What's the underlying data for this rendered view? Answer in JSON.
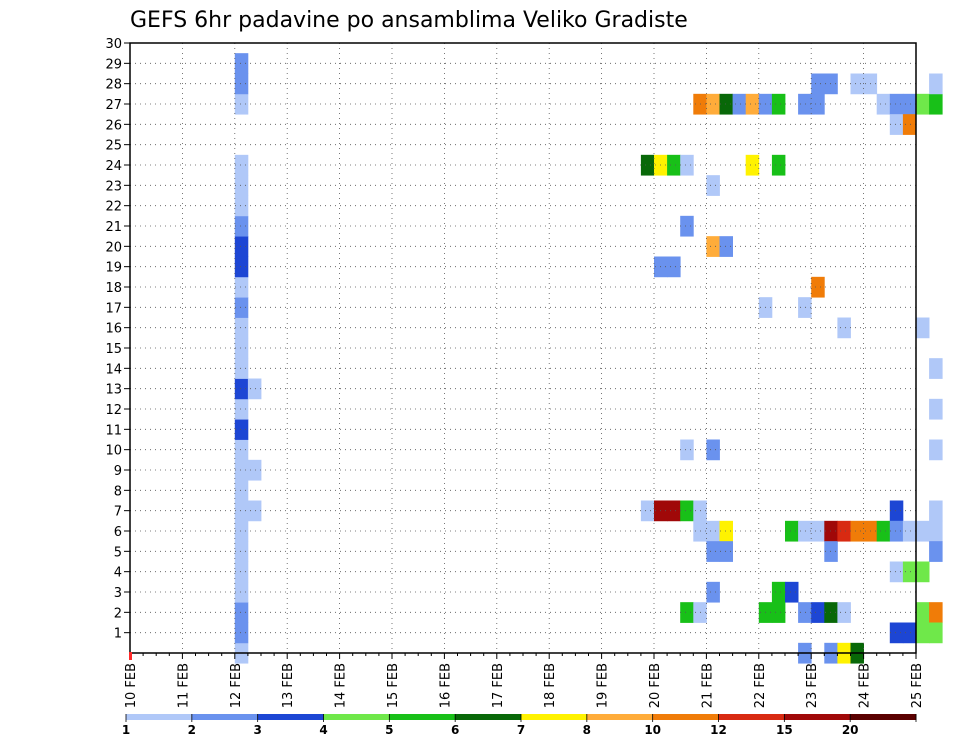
{
  "chart_data": {
    "type": "heatmap",
    "title": "GEFS 6hr padavine po ansamblima Veliko Gradiste",
    "xlabel": "",
    "ylabel": "",
    "x_tick_labels": [
      "10 FEB",
      "11 FEB",
      "12 FEB",
      "13 FEB",
      "14 FEB",
      "15 FEB",
      "16 FEB",
      "17 FEB",
      "18 FEB",
      "19 FEB",
      "20 FEB",
      "21 FEB",
      "22 FEB",
      "23 FEB",
      "24 FEB",
      "25 FEB"
    ],
    "y_tick_labels": [
      "1",
      "2",
      "3",
      "4",
      "5",
      "6",
      "7",
      "8",
      "9",
      "10",
      "11",
      "12",
      "13",
      "14",
      "15",
      "16",
      "17",
      "18",
      "19",
      "20",
      "21",
      "22",
      "23",
      "24",
      "25",
      "26",
      "27",
      "28",
      "29",
      "30"
    ],
    "x_range_steps": [
      0,
      60
    ],
    "y_range": [
      0,
      30
    ],
    "grid": true,
    "legend": {
      "placement": "bottom",
      "colors": [
        "#b0c8f8",
        "#6a92ee",
        "#1d46d4",
        "#6fe84a",
        "#18c018",
        "#086808",
        "#fff200",
        "#ffac3a",
        "#f07c08",
        "#d82a12",
        "#a00808",
        "#5a0000"
      ],
      "labels": [
        "1",
        "2",
        "3",
        "4",
        "5",
        "6",
        "7",
        "8",
        "10",
        "12",
        "15",
        "20"
      ]
    },
    "cells_note": "step index (6h steps from 10 FEB 00z), member, color class index",
    "cells": [
      [
        8,
        0,
        0
      ],
      [
        8,
        1,
        1
      ],
      [
        8,
        2,
        1
      ],
      [
        8,
        3,
        0
      ],
      [
        8,
        4,
        0
      ],
      [
        8,
        5,
        0
      ],
      [
        8,
        6,
        0
      ],
      [
        8,
        7,
        0
      ],
      [
        8,
        8,
        0
      ],
      [
        8,
        9,
        0
      ],
      [
        8,
        10,
        0
      ],
      [
        8,
        11,
        2
      ],
      [
        8,
        12,
        0
      ],
      [
        8,
        13,
        2
      ],
      [
        8,
        14,
        0
      ],
      [
        8,
        15,
        0
      ],
      [
        8,
        16,
        0
      ],
      [
        8,
        17,
        1
      ],
      [
        8,
        18,
        0
      ],
      [
        8,
        19,
        2
      ],
      [
        8,
        20,
        2
      ],
      [
        8,
        21,
        1
      ],
      [
        8,
        22,
        0
      ],
      [
        8,
        23,
        0
      ],
      [
        8,
        24,
        0
      ],
      [
        8,
        27,
        0
      ],
      [
        8,
        28,
        1
      ],
      [
        8,
        29,
        1
      ],
      [
        9,
        9,
        0
      ],
      [
        9,
        13,
        0
      ],
      [
        9,
        7,
        0
      ],
      [
        39,
        7,
        0
      ],
      [
        39,
        24,
        5
      ],
      [
        40,
        7,
        10
      ],
      [
        40,
        24,
        6
      ],
      [
        40,
        19,
        1
      ],
      [
        41,
        7,
        10
      ],
      [
        41,
        19,
        1
      ],
      [
        41,
        24,
        4
      ],
      [
        42,
        7,
        4
      ],
      [
        42,
        24,
        0
      ],
      [
        42,
        10,
        0
      ],
      [
        42,
        21,
        1
      ],
      [
        42,
        2,
        4
      ],
      [
        43,
        7,
        0
      ],
      [
        43,
        6,
        0
      ],
      [
        43,
        2,
        0
      ],
      [
        43,
        27,
        8
      ],
      [
        44,
        6,
        0
      ],
      [
        44,
        5,
        1
      ],
      [
        44,
        3,
        1
      ],
      [
        44,
        10,
        1
      ],
      [
        44,
        23,
        0
      ],
      [
        44,
        20,
        7
      ],
      [
        44,
        27,
        7
      ],
      [
        45,
        6,
        6
      ],
      [
        45,
        5,
        1
      ],
      [
        45,
        20,
        1
      ],
      [
        45,
        27,
        5
      ],
      [
        46,
        27,
        1
      ],
      [
        47,
        24,
        6
      ],
      [
        47,
        27,
        7
      ],
      [
        48,
        2,
        4
      ],
      [
        48,
        17,
        0
      ],
      [
        48,
        27,
        1
      ],
      [
        49,
        2,
        4
      ],
      [
        49,
        3,
        4
      ],
      [
        49,
        24,
        4
      ],
      [
        49,
        27,
        4
      ],
      [
        50,
        6,
        4
      ],
      [
        50,
        3,
        2
      ],
      [
        51,
        6,
        0
      ],
      [
        51,
        2,
        1
      ],
      [
        51,
        0,
        1
      ],
      [
        51,
        17,
        0
      ],
      [
        51,
        27,
        1
      ],
      [
        52,
        6,
        0
      ],
      [
        52,
        2,
        2
      ],
      [
        52,
        18,
        8
      ],
      [
        52,
        27,
        1
      ],
      [
        52,
        28,
        1
      ],
      [
        53,
        6,
        10
      ],
      [
        53,
        2,
        5
      ],
      [
        53,
        5,
        1
      ],
      [
        53,
        0,
        1
      ],
      [
        53,
        28,
        1
      ],
      [
        54,
        6,
        9
      ],
      [
        54,
        2,
        0
      ],
      [
        54,
        0,
        6
      ],
      [
        54,
        16,
        0
      ],
      [
        55,
        6,
        8
      ],
      [
        55,
        0,
        5
      ],
      [
        55,
        28,
        0
      ],
      [
        56,
        6,
        8
      ],
      [
        56,
        28,
        0
      ],
      [
        57,
        6,
        4
      ],
      [
        57,
        27,
        0
      ],
      [
        58,
        7,
        2
      ],
      [
        58,
        6,
        1
      ],
      [
        58,
        4,
        0
      ],
      [
        58,
        1,
        2
      ],
      [
        58,
        27,
        1
      ],
      [
        58,
        26,
        0
      ],
      [
        59,
        6,
        0
      ],
      [
        59,
        1,
        2
      ],
      [
        59,
        4,
        3
      ],
      [
        59,
        27,
        1
      ],
      [
        59,
        26,
        8
      ],
      [
        60,
        6,
        0
      ],
      [
        60,
        2,
        3
      ],
      [
        60,
        1,
        3
      ],
      [
        60,
        4,
        3
      ],
      [
        60,
        27,
        3
      ],
      [
        60,
        16,
        0
      ],
      [
        61,
        7,
        0
      ],
      [
        61,
        6,
        0
      ],
      [
        61,
        5,
        1
      ],
      [
        61,
        2,
        8
      ],
      [
        61,
        1,
        3
      ],
      [
        61,
        10,
        0
      ],
      [
        61,
        12,
        0
      ],
      [
        61,
        14,
        0
      ],
      [
        61,
        27,
        4
      ],
      [
        61,
        28,
        0
      ]
    ]
  }
}
